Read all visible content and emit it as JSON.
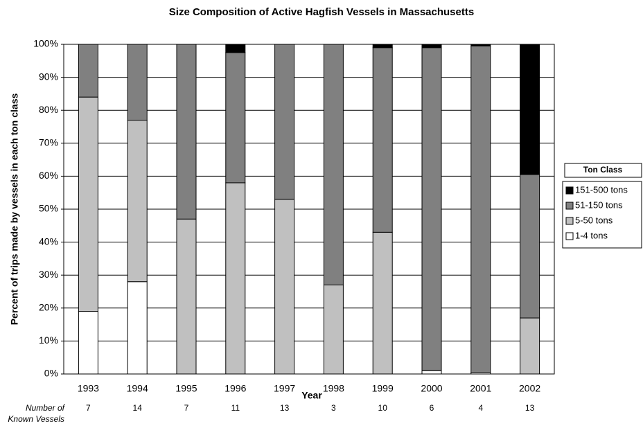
{
  "chart_data": {
    "type": "bar",
    "stacked": true,
    "title": "Size Composition of Active Hagfish Vessels in Massachusetts",
    "x_label": "Year",
    "y_label": "Percent of trips made by vessels in each ton class",
    "categories": [
      "1993",
      "1994",
      "1995",
      "1996",
      "1997",
      "1998",
      "1999",
      "2000",
      "2001",
      "2002"
    ],
    "series": [
      {
        "name": "1-4 tons",
        "color": "#ffffff",
        "values": [
          19,
          28,
          0,
          0,
          0,
          0,
          0,
          1,
          0.5,
          0
        ]
      },
      {
        "name": "5-50 tons",
        "color": "#c0c0c0",
        "values": [
          65,
          49,
          47,
          58,
          53,
          27,
          43,
          0,
          0,
          17
        ]
      },
      {
        "name": "51-150 tons",
        "color": "#808080",
        "values": [
          16,
          23,
          53,
          39.5,
          47,
          73,
          56,
          98,
          99,
          43.5
        ]
      },
      {
        "name": "151-500 tons",
        "color": "#000000",
        "values": [
          0,
          0,
          0,
          2.5,
          0,
          0,
          1,
          1,
          0.5,
          39.5
        ]
      }
    ],
    "ylim": [
      0,
      100
    ],
    "yticks": [
      {
        "value": 0,
        "label": "0%"
      },
      {
        "value": 10,
        "label": "10%"
      },
      {
        "value": 20,
        "label": "20%"
      },
      {
        "value": 30,
        "label": "30%"
      },
      {
        "value": 40,
        "label": "40%"
      },
      {
        "value": 50,
        "label": "50%"
      },
      {
        "value": 60,
        "label": "60%"
      },
      {
        "value": 70,
        "label": "70%"
      },
      {
        "value": 80,
        "label": "80%"
      },
      {
        "value": 90,
        "label": "90%"
      },
      {
        "value": 100,
        "label": "100%"
      }
    ],
    "grid": true,
    "legend_title": "Ton Class",
    "legend_position": "right",
    "vessel_count_label": [
      "Number of",
      "Known Vessels"
    ],
    "vessel_counts": [
      7,
      14,
      7,
      11,
      13,
      3,
      10,
      6,
      4,
      13
    ]
  }
}
